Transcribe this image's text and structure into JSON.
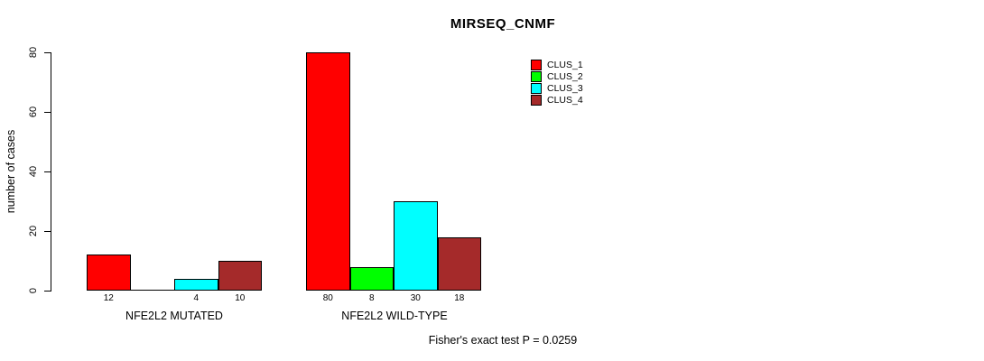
{
  "chart_data": {
    "type": "bar",
    "title": "MIRSEQ_CNMF",
    "ylabel": "number of cases",
    "xlabel": "",
    "ylim": [
      0,
      80
    ],
    "yticks": [
      "0",
      "20",
      "40",
      "60",
      "80"
    ],
    "grid": false,
    "legend_position": "top-right",
    "categories": [
      "NFE2L2 MUTATED",
      "NFE2L2 WILD-TYPE"
    ],
    "series": [
      {
        "name": "CLUS_1",
        "color": "#ff0000",
        "values": [
          12,
          80
        ]
      },
      {
        "name": "CLUS_2",
        "color": "#00ff00",
        "values": [
          0,
          8
        ]
      },
      {
        "name": "CLUS_3",
        "color": "#00ffff",
        "values": [
          4,
          30
        ]
      },
      {
        "name": "CLUS_4",
        "color": "#a52a2a",
        "values": [
          10,
          18
        ]
      }
    ],
    "bar_value_labels": [
      [
        "12",
        "",
        "4",
        "10"
      ],
      [
        "80",
        "8",
        "30",
        "18"
      ]
    ],
    "annotation": "Fisher's exact test P = 0.0259"
  }
}
